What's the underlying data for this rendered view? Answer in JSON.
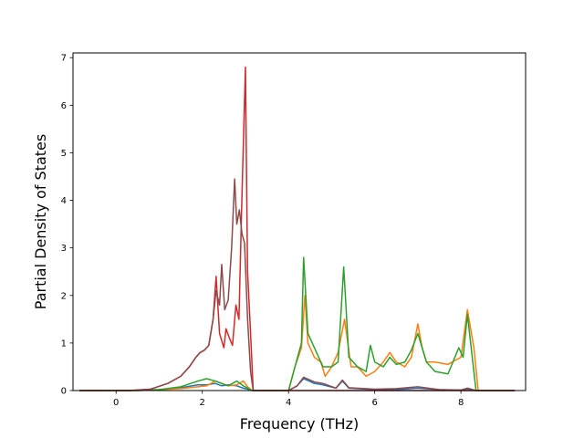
{
  "chart_data": {
    "type": "line",
    "title": "",
    "xlabel": "Frequency (THz)",
    "ylabel": "Partial Density of States",
    "xlim": [
      -1.0,
      9.5
    ],
    "ylim": [
      0,
      7.1
    ],
    "xticks": [
      0,
      2,
      4,
      6,
      8
    ],
    "yticks": [
      0,
      1,
      2,
      3,
      4,
      5,
      6,
      7
    ],
    "grid": false,
    "legend": "none",
    "series": [
      {
        "color": "#1f77b4",
        "x": [
          -0.85,
          0.3,
          1.0,
          1.5,
          1.9,
          2.1,
          2.3,
          2.45,
          2.6,
          2.8,
          2.95,
          3.05,
          3.15,
          4.0,
          4.2,
          4.35,
          4.6,
          4.8,
          5.1,
          5.25,
          5.4,
          6.0,
          6.5,
          7.0,
          7.5,
          8.0,
          8.15,
          8.35,
          9.25
        ],
        "y": [
          0,
          0,
          0.02,
          0.06,
          0.12,
          0.12,
          0.15,
          0.1,
          0.12,
          0.1,
          0.05,
          0.03,
          0,
          0,
          0.1,
          0.25,
          0.15,
          0.12,
          0.05,
          0.2,
          0.05,
          0.02,
          0.02,
          0.05,
          0.02,
          0.01,
          0.03,
          0,
          0
        ]
      },
      {
        "color": "#ff7f0e",
        "x": [
          -0.85,
          0.5,
          1.0,
          1.5,
          1.9,
          2.1,
          2.3,
          2.45,
          2.6,
          2.8,
          2.95,
          3.05,
          3.15,
          4.0,
          4.15,
          4.3,
          4.38,
          4.45,
          4.6,
          4.75,
          4.85,
          5.0,
          5.15,
          5.3,
          5.45,
          5.6,
          5.8,
          6.0,
          6.2,
          6.35,
          6.5,
          6.7,
          6.85,
          7.0,
          7.1,
          7.2,
          7.4,
          7.7,
          8.0,
          8.15,
          8.3,
          8.4,
          9.25
        ],
        "y": [
          0,
          0,
          0.02,
          0.04,
          0.08,
          0.1,
          0.2,
          0.15,
          0.1,
          0.12,
          0.2,
          0.08,
          0,
          0,
          0.5,
          0.9,
          2.0,
          1.0,
          0.7,
          0.6,
          0.3,
          0.5,
          0.8,
          1.5,
          0.5,
          0.5,
          0.3,
          0.4,
          0.6,
          0.8,
          0.6,
          0.5,
          0.7,
          1.4,
          0.9,
          0.6,
          0.6,
          0.55,
          0.7,
          1.7,
          0.9,
          0,
          0
        ]
      },
      {
        "color": "#2ca02c",
        "x": [
          -0.85,
          0.5,
          1.0,
          1.5,
          1.9,
          2.1,
          2.3,
          2.45,
          2.6,
          2.8,
          2.95,
          3.05,
          3.15,
          4.0,
          4.15,
          4.3,
          4.35,
          4.45,
          4.6,
          4.8,
          5.0,
          5.15,
          5.28,
          5.4,
          5.6,
          5.8,
          5.9,
          6.0,
          6.2,
          6.35,
          6.5,
          6.7,
          6.85,
          7.0,
          7.1,
          7.2,
          7.4,
          7.7,
          7.95,
          8.05,
          8.15,
          8.25,
          8.35,
          9.25
        ],
        "y": [
          0,
          0,
          0.02,
          0.08,
          0.2,
          0.25,
          0.2,
          0.15,
          0.1,
          0.2,
          0.1,
          0.05,
          0,
          0,
          0.5,
          1.0,
          2.8,
          1.2,
          0.9,
          0.5,
          0.5,
          0.6,
          2.6,
          0.7,
          0.5,
          0.4,
          0.95,
          0.6,
          0.5,
          0.7,
          0.55,
          0.6,
          0.85,
          1.2,
          0.9,
          0.6,
          0.4,
          0.35,
          0.9,
          0.7,
          1.6,
          0.8,
          0,
          0
        ]
      },
      {
        "color": "#d62728",
        "x": [
          -0.85,
          0.3,
          0.8,
          1.2,
          1.5,
          1.7,
          1.85,
          1.95,
          2.05,
          2.15,
          2.25,
          2.32,
          2.4,
          2.5,
          2.55,
          2.63,
          2.7,
          2.78,
          2.85,
          2.92,
          3.0,
          3.05,
          3.12,
          3.18,
          9.25
        ],
        "y": [
          0,
          0,
          0.03,
          0.15,
          0.3,
          0.5,
          0.7,
          0.8,
          0.85,
          0.95,
          1.5,
          2.4,
          1.2,
          0.9,
          1.3,
          1.1,
          0.95,
          1.8,
          1.5,
          4.1,
          6.8,
          2.5,
          1.2,
          0,
          0
        ]
      },
      {
        "color": "#8c4a4a",
        "x": [
          -0.85,
          0.3,
          0.8,
          1.2,
          1.5,
          1.7,
          1.85,
          1.95,
          2.05,
          2.15,
          2.25,
          2.32,
          2.4,
          2.45,
          2.52,
          2.6,
          2.68,
          2.75,
          2.8,
          2.86,
          2.92,
          2.98,
          3.05,
          3.12,
          3.18,
          4.0,
          4.2,
          4.35,
          4.6,
          4.8,
          5.1,
          5.25,
          5.4,
          6.0,
          6.5,
          7.0,
          7.5,
          8.0,
          8.15,
          8.35,
          9.25
        ],
        "y": [
          0,
          0,
          0.03,
          0.15,
          0.3,
          0.5,
          0.7,
          0.8,
          0.85,
          0.95,
          1.5,
          2.1,
          1.8,
          2.65,
          1.7,
          1.9,
          3.0,
          4.45,
          3.5,
          3.8,
          3.3,
          3.1,
          1.5,
          0.4,
          0,
          0,
          0.1,
          0.28,
          0.18,
          0.15,
          0.05,
          0.22,
          0.06,
          0.03,
          0.04,
          0.08,
          0.02,
          0.01,
          0.05,
          0,
          0
        ]
      }
    ]
  }
}
